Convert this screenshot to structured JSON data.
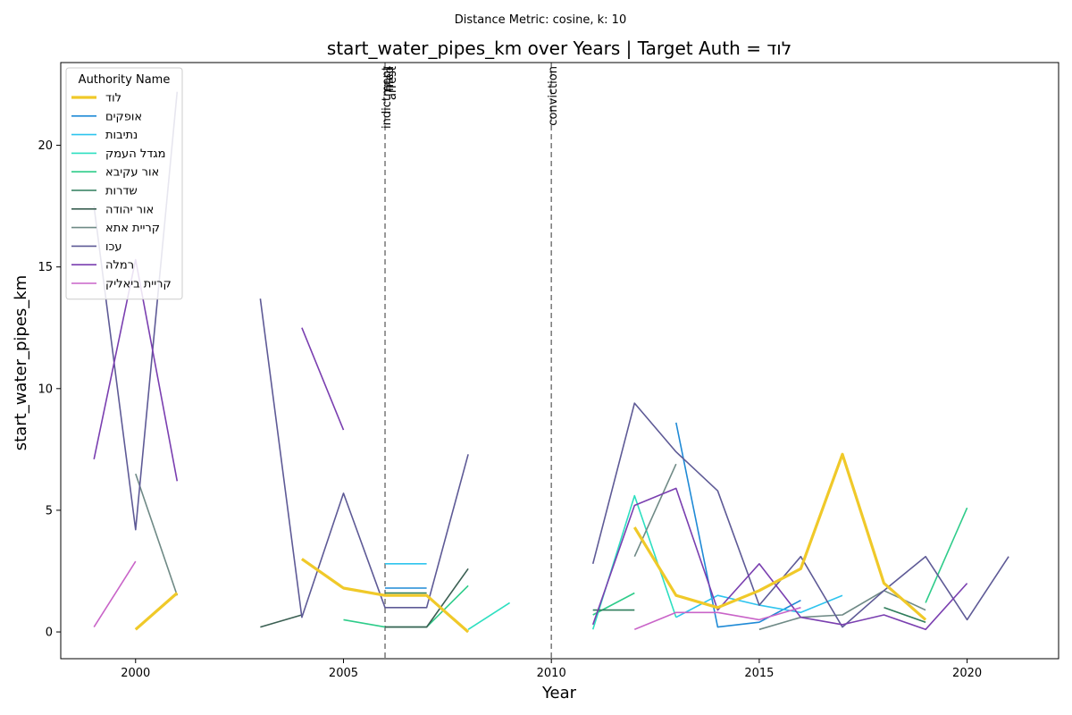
{
  "suptitle": "Distance Metric: cosine, k: 10",
  "chart_data": {
    "type": "line",
    "title": "start_water_pipes_km over Years | Target Auth = לוד",
    "xlabel": "Year",
    "ylabel": "start_water_pipes_km",
    "xlim": [
      1998.2,
      2022.2
    ],
    "ylim": [
      -1.1,
      23.4
    ],
    "xticks": [
      2000,
      2005,
      2010,
      2015,
      2020
    ],
    "yticks": [
      0,
      5,
      10,
      15,
      20
    ],
    "grid": false,
    "legend": {
      "title": "Authority Name",
      "position": "top-left"
    },
    "events": [
      {
        "x": 2006,
        "label": "indictment"
      },
      {
        "x": 2006,
        "label": "filed"
      },
      {
        "x": 2006,
        "label": "arrest"
      },
      {
        "x": 2010,
        "label": "conviction"
      }
    ],
    "series": [
      {
        "name": "לוד",
        "color": "#f0c929",
        "target": true,
        "points": [
          [
            2000,
            0.1
          ],
          [
            2001,
            1.6
          ],
          [
            2004,
            3.0
          ],
          [
            2005,
            1.8
          ],
          [
            2006,
            1.5
          ],
          [
            2007,
            1.5
          ],
          [
            2008,
            0.0
          ],
          [
            2012,
            4.3
          ],
          [
            2013,
            1.5
          ],
          [
            2014,
            1.0
          ],
          [
            2015,
            1.7
          ],
          [
            2016,
            2.6
          ],
          [
            2017,
            7.3
          ],
          [
            2018,
            2.0
          ],
          [
            2019,
            0.5
          ]
        ]
      },
      {
        "name": "אופקים",
        "color": "#1f8ad6",
        "target": false,
        "points": [
          [
            2006,
            1.8
          ],
          [
            2007,
            1.8
          ],
          [
            2013,
            8.6
          ],
          [
            2014,
            0.2
          ],
          [
            2015,
            0.4
          ],
          [
            2016,
            1.3
          ]
        ]
      },
      {
        "name": "נתיבות",
        "color": "#2ec4ee",
        "target": false,
        "points": [
          [
            2006,
            2.8
          ],
          [
            2007,
            2.8
          ],
          [
            2013,
            0.6
          ],
          [
            2014,
            1.5
          ],
          [
            2015,
            1.1
          ],
          [
            2016,
            0.8
          ],
          [
            2017,
            1.5
          ]
        ]
      },
      {
        "name": "מגדל העמק",
        "color": "#2ddfc0",
        "target": false,
        "points": [
          [
            2008,
            0.1
          ],
          [
            2009,
            1.2
          ],
          [
            2011,
            0.1
          ],
          [
            2012,
            5.6
          ],
          [
            2013,
            0.6
          ]
        ]
      },
      {
        "name": "אור עקיבא",
        "color": "#2ecc8a",
        "target": false,
        "points": [
          [
            2005,
            0.5
          ],
          [
            2006,
            0.2
          ],
          [
            2007,
            0.2
          ],
          [
            2008,
            1.9
          ],
          [
            2011,
            0.7
          ],
          [
            2012,
            1.6
          ],
          [
            2019,
            1.2
          ],
          [
            2020,
            5.1
          ]
        ]
      },
      {
        "name": "שדרות",
        "color": "#2e7d5b",
        "target": false,
        "points": [
          [
            2006,
            1.6
          ],
          [
            2007,
            1.6
          ],
          [
            2011,
            0.9
          ],
          [
            2012,
            0.9
          ],
          [
            2018,
            1.0
          ],
          [
            2019,
            0.4
          ]
        ]
      },
      {
        "name": "אור יהודה",
        "color": "#3a5f52",
        "target": false,
        "points": [
          [
            2003,
            0.2
          ],
          [
            2004,
            0.7
          ],
          [
            2006,
            0.2
          ],
          [
            2007,
            0.2
          ],
          [
            2008,
            2.6
          ]
        ]
      },
      {
        "name": "קריית אתא",
        "color": "#6f8a86",
        "target": false,
        "points": [
          [
            2000,
            6.5
          ],
          [
            2001,
            1.5
          ],
          [
            2012,
            3.1
          ],
          [
            2013,
            6.9
          ],
          [
            2015,
            0.1
          ],
          [
            2016,
            0.6
          ],
          [
            2017,
            0.7
          ],
          [
            2018,
            1.7
          ],
          [
            2019,
            0.9
          ]
        ]
      },
      {
        "name": "עכו",
        "color": "#5e5a96",
        "target": false,
        "points": [
          [
            1999,
            17.5
          ],
          [
            2000,
            4.2
          ],
          [
            2001,
            22.2
          ],
          [
            2003,
            13.7
          ],
          [
            2004,
            0.6
          ],
          [
            2005,
            5.7
          ],
          [
            2006,
            1.0
          ],
          [
            2007,
            1.0
          ],
          [
            2008,
            7.3
          ],
          [
            2011,
            2.8
          ],
          [
            2012,
            9.4
          ],
          [
            2013,
            7.4
          ],
          [
            2014,
            5.8
          ],
          [
            2015,
            1.1
          ],
          [
            2016,
            3.1
          ],
          [
            2017,
            0.2
          ],
          [
            2018,
            1.7
          ],
          [
            2019,
            3.1
          ],
          [
            2020,
            0.5
          ],
          [
            2021,
            3.1
          ]
        ]
      },
      {
        "name": "רמלה",
        "color": "#7a3fb0",
        "target": false,
        "points": [
          [
            1999,
            7.1
          ],
          [
            2000,
            15.3
          ],
          [
            2001,
            6.2
          ],
          [
            2004,
            12.5
          ],
          [
            2005,
            8.3
          ],
          [
            2011,
            0.3
          ],
          [
            2012,
            5.2
          ],
          [
            2013,
            5.9
          ],
          [
            2014,
            0.9
          ],
          [
            2015,
            2.8
          ],
          [
            2016,
            0.6
          ],
          [
            2017,
            0.3
          ],
          [
            2018,
            0.7
          ],
          [
            2019,
            0.1
          ],
          [
            2020,
            2.0
          ]
        ]
      },
      {
        "name": "קריית ביאליק",
        "color": "#c964c8",
        "target": false,
        "points": [
          [
            1999,
            0.2
          ],
          [
            2000,
            2.9
          ],
          [
            2012,
            0.1
          ],
          [
            2013,
            0.8
          ],
          [
            2014,
            0.8
          ],
          [
            2015,
            0.5
          ],
          [
            2016,
            1.0
          ]
        ]
      }
    ]
  }
}
